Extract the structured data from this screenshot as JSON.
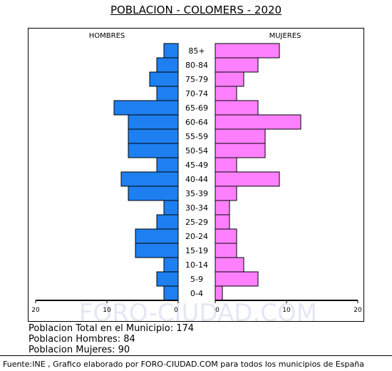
{
  "title": "POBLACION - COLOMERS - 2020",
  "stats": {
    "total": "Poblacion Total en el Municipio: 174",
    "hombres": "Poblacion Hombres: 84",
    "mujeres": "Poblacion Mujeres: 90"
  },
  "source": "Fuente:INE , Grafico elaborado por FORO-CIUDAD.COM para todos los municipios de España",
  "watermark": "FORO-CIUDAD.COM",
  "colors": {
    "hombres": "#1e80f0",
    "mujeres": "#ff80ff"
  },
  "chart_data": {
    "type": "bar",
    "orientation": "horizontal-pyramid",
    "left_label": "HOMBRES",
    "right_label": "MUJERES",
    "categories": [
      "85+",
      "80-84",
      "75-79",
      "70-74",
      "65-69",
      "60-64",
      "55-59",
      "50-54",
      "45-49",
      "40-44",
      "35-39",
      "30-34",
      "25-29",
      "20-24",
      "15-19",
      "10-14",
      "5-9",
      "0-4"
    ],
    "series": [
      {
        "name": "HOMBRES",
        "values": [
          2,
          3,
          4,
          3,
          9,
          7,
          7,
          7,
          3,
          8,
          7,
          2,
          3,
          6,
          6,
          2,
          3,
          2
        ]
      },
      {
        "name": "MUJERES",
        "values": [
          9,
          6,
          4,
          3,
          6,
          12,
          7,
          7,
          3,
          9,
          3,
          2,
          2,
          3,
          3,
          4,
          6,
          1
        ]
      }
    ],
    "xlim": [
      0,
      20
    ],
    "x_ticks": [
      "20",
      "10",
      "0",
      "0",
      "10",
      "20"
    ]
  }
}
